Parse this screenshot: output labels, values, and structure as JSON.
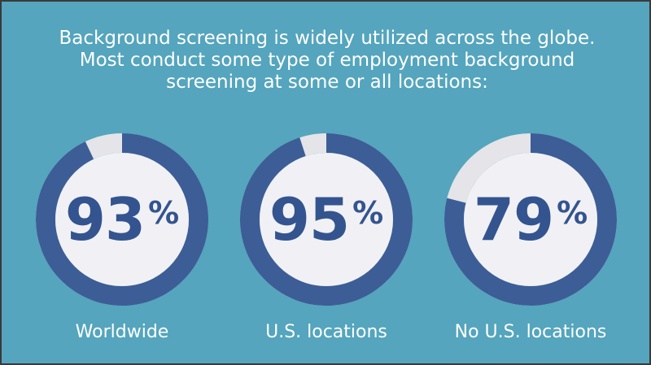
{
  "header": {
    "lines": [
      "Background screening is widely utilized across the globe.",
      "Most conduct some type of employment background",
      "screening at some or all locations:"
    ]
  },
  "colors": {
    "background": "#54a5bd",
    "ring_filled": "#3d5d96",
    "ring_track": "#e4e4e9",
    "inner_circle": "#f1f1f5",
    "percent_text": "#34548f"
  },
  "chart_data": {
    "type": "donut",
    "series": [
      {
        "name": "Worldwide",
        "value": 93,
        "value_label": "93",
        "unit": "%"
      },
      {
        "name": "U.S. locations",
        "value": 95,
        "value_label": "95",
        "unit": "%"
      },
      {
        "name": "No U.S. locations",
        "value": 79,
        "value_label": "79",
        "unit": "%"
      }
    ],
    "max": 100
  }
}
